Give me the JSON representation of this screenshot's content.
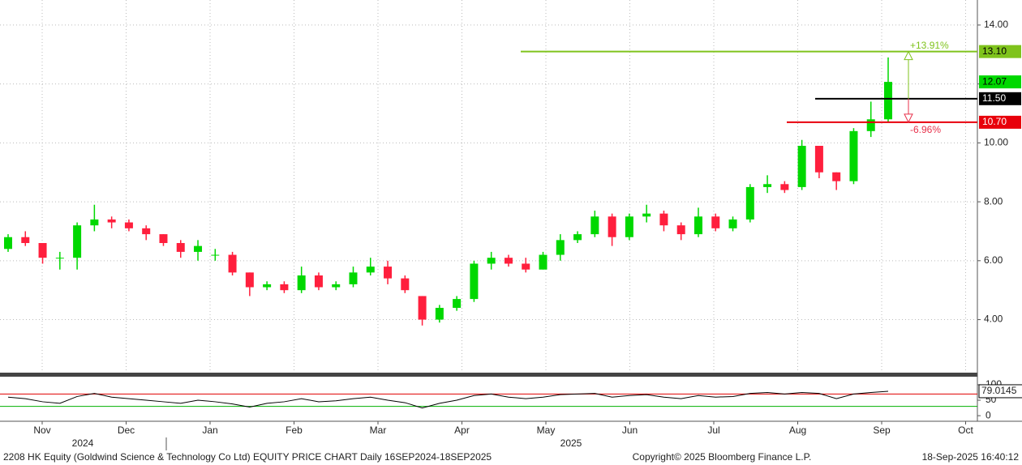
{
  "chart_data": {
    "type": "candlestick",
    "title": "2208 HK Equity (Goldwind Science & Technology Co Ltd) EQUITY PRICE CHART  Daily 16SEP2024-18SEP2025",
    "copyright": "Copyright© 2025 Bloomberg Finance L.P.",
    "timestamp": "18-Sep-2025 16:40:12",
    "x_labels": [
      "Nov",
      "Dec",
      "Jan",
      "Feb",
      "Mar",
      "Apr",
      "May",
      "Jun",
      "Jul",
      "Aug",
      "Sep",
      "Oct"
    ],
    "years": [
      "2024",
      "2025"
    ],
    "up_color": "#00d800",
    "down_color": "#ff1f3d",
    "candles": {
      "open": [
        6.4,
        6.8,
        6.6,
        6.1,
        6.1,
        7.2,
        7.4,
        7.3,
        7.1,
        6.9,
        6.6,
        6.3,
        6.2,
        6.2,
        5.6,
        5.1,
        5.2,
        5.0,
        5.5,
        5.1,
        5.2,
        5.6,
        5.8,
        5.4,
        4.8,
        4.0,
        4.4,
        4.7,
        5.9,
        6.1,
        5.9,
        5.7,
        6.2,
        6.7,
        6.9,
        7.5,
        6.8,
        7.5,
        7.6,
        7.2,
        6.9,
        7.5,
        7.1,
        7.4,
        8.5,
        8.6,
        8.5,
        9.9,
        9.0,
        8.7,
        10.4,
        10.8
      ],
      "high": [
        6.9,
        7.0,
        6.6,
        6.3,
        7.3,
        7.9,
        7.5,
        7.4,
        7.2,
        6.9,
        6.7,
        6.7,
        6.4,
        6.3,
        5.6,
        5.3,
        5.3,
        5.8,
        5.6,
        5.3,
        5.8,
        6.1,
        6.0,
        5.5,
        4.8,
        4.5,
        4.8,
        6.0,
        6.3,
        6.2,
        6.1,
        6.3,
        6.9,
        7.0,
        7.7,
        7.6,
        7.6,
        7.9,
        7.7,
        7.3,
        7.8,
        7.6,
        7.5,
        8.6,
        8.9,
        8.7,
        10.1,
        9.9,
        9.0,
        10.5,
        11.4,
        12.9
      ],
      "low": [
        6.3,
        6.5,
        5.9,
        5.7,
        5.7,
        7.0,
        7.1,
        7.0,
        6.7,
        6.5,
        6.1,
        6.0,
        6.0,
        5.5,
        4.8,
        5.0,
        4.9,
        4.9,
        5.0,
        5.0,
        5.1,
        5.5,
        5.2,
        4.9,
        3.8,
        3.9,
        4.3,
        4.6,
        5.7,
        5.8,
        5.6,
        5.7,
        6.0,
        6.6,
        6.8,
        6.5,
        6.7,
        7.3,
        7.0,
        6.7,
        6.8,
        7.0,
        7.0,
        7.3,
        8.3,
        8.3,
        8.4,
        8.8,
        8.4,
        8.6,
        10.2,
        10.7
      ],
      "close": [
        6.8,
        6.6,
        6.1,
        6.1,
        7.2,
        7.4,
        7.3,
        7.1,
        6.9,
        6.6,
        6.3,
        6.5,
        6.2,
        5.6,
        5.1,
        5.2,
        5.0,
        5.5,
        5.1,
        5.2,
        5.6,
        5.8,
        5.4,
        5.0,
        4.0,
        4.4,
        4.7,
        5.9,
        6.1,
        5.9,
        5.7,
        6.2,
        6.7,
        6.9,
        7.5,
        6.8,
        7.5,
        7.6,
        7.2,
        6.9,
        7.5,
        7.1,
        7.4,
        8.5,
        8.6,
        8.4,
        9.9,
        9.0,
        8.7,
        10.4,
        10.8,
        12.07
      ]
    },
    "ylim": [
      2.2,
      14.85
    ],
    "yticks": [
      {
        "value": 4,
        "label": "4.00"
      },
      {
        "value": 6,
        "label": "6.00"
      },
      {
        "value": 8,
        "label": "8.00"
      },
      {
        "value": 10,
        "label": "10.00"
      },
      {
        "value": 12,
        "label": "12.00"
      },
      {
        "value": 14,
        "label": "14.00"
      }
    ],
    "grid": true,
    "levels": [
      {
        "value": 13.1,
        "label": "13.10",
        "color": "#7fc31c"
      },
      {
        "value": 11.5,
        "label": "11.50",
        "color": "#000000"
      },
      {
        "value": 10.7,
        "label": "10.70",
        "color": "#e8000b"
      }
    ],
    "annotations": [
      {
        "text": "+13.91%",
        "color": "#7fc31c"
      },
      {
        "text": "-6.96%",
        "color": "#e8304a"
      }
    ],
    "rsi": {
      "values": [
        60,
        55,
        45,
        40,
        62,
        72,
        60,
        55,
        50,
        45,
        40,
        50,
        45,
        38,
        28,
        40,
        45,
        55,
        45,
        48,
        55,
        60,
        50,
        42,
        25,
        40,
        50,
        65,
        70,
        60,
        55,
        60,
        68,
        70,
        72,
        60,
        65,
        68,
        60,
        55,
        65,
        60,
        62,
        72,
        75,
        70,
        75,
        72,
        55,
        70,
        75,
        79.0145
      ],
      "color": "#000000",
      "ylim": [
        -18,
        126
      ],
      "yticks": [
        0,
        50,
        100
      ],
      "bands": [
        {
          "value": 70,
          "color": "#e00000"
        },
        {
          "value": 30,
          "color": "#00b000"
        }
      ]
    }
  }
}
